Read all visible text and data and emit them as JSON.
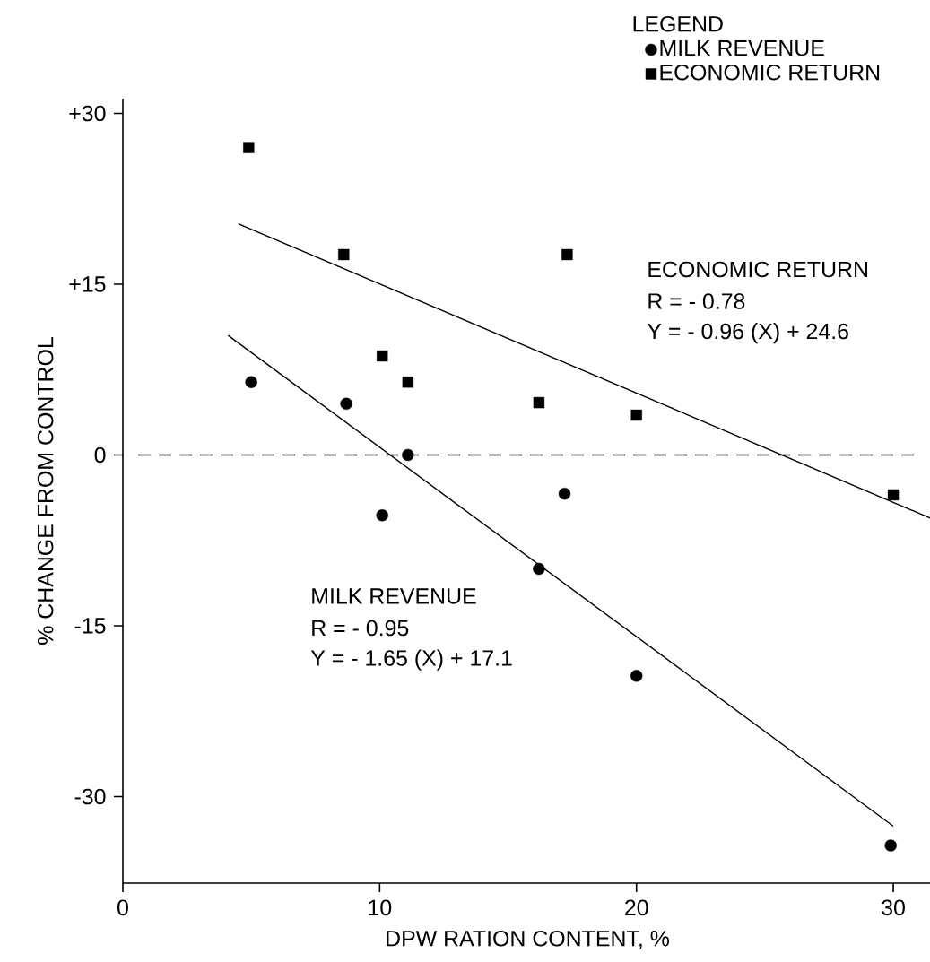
{
  "chart_data": {
    "type": "scatter",
    "xlabel": "DPW RATION CONTENT, %",
    "ylabel": "% CHANGE FROM CONTROL",
    "legend_title": "LEGEND",
    "legend": "top right",
    "xlim": [
      0,
      31.5
    ],
    "ylim": [
      -37.6,
      31.3
    ],
    "xticks": [
      0,
      10,
      20,
      30
    ],
    "yticks": [
      {
        "value": 30,
        "label": "+30"
      },
      {
        "value": 15,
        "label": "+15"
      },
      0,
      {
        "value": -15,
        "label": "-15"
      },
      {
        "value": -30,
        "label": "-30"
      }
    ],
    "grid": false,
    "series": [
      {
        "name": "MILK REVENUE",
        "type": "scatter",
        "marker": "circle",
        "color": "#000000",
        "x": [
          5,
          8.7,
          10.1,
          11.1,
          16.2,
          17.2,
          20,
          29.9
        ],
        "values": [
          6.4,
          4.5,
          -5.3,
          0,
          -10.0,
          -3.4,
          -19.4,
          -34.3
        ]
      },
      {
        "name": "ECONOMIC RETURN",
        "type": "scatter",
        "marker": "square",
        "color": "#000000",
        "x": [
          4.9,
          8.6,
          10.1,
          11.1,
          16.2,
          17.3,
          20,
          30
        ],
        "values": [
          27.0,
          17.6,
          8.7,
          6.4,
          4.6,
          17.6,
          3.5,
          -3.5
        ]
      },
      {
        "type": "line",
        "color": "#000000",
        "x": [
          4.5,
          31.5
        ],
        "values": [
          20.3,
          -5.6
        ]
      },
      {
        "type": "line",
        "color": "#000000",
        "x": [
          4.1,
          30
        ],
        "values": [
          10.5,
          -32.6
        ]
      }
    ],
    "ref_lines": [
      {
        "axis": "y",
        "value": 0,
        "line_style": "dashed"
      }
    ],
    "annotations": [
      "ECONOMIC RETURN",
      "R = - 0.78",
      "Y = - 0.96 (X) + 24.6",
      "MILK REVENUE",
      "R = - 0.95",
      "Y = - 1.65 (X) + 17.1"
    ]
  }
}
